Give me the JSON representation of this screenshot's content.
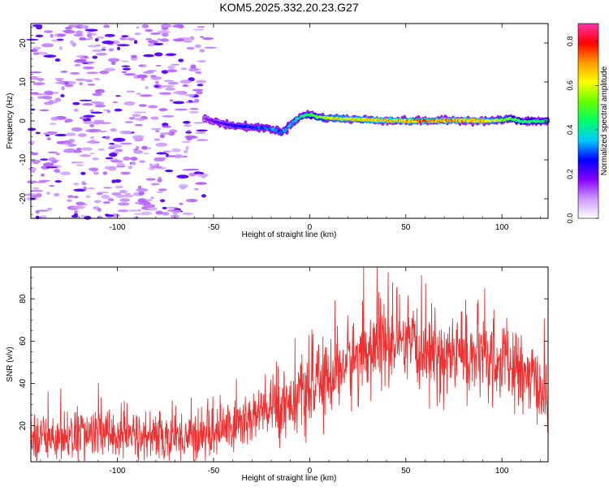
{
  "figure": {
    "title": "KOM5.2025.332.20.23.G27"
  },
  "chart_data": [
    {
      "type": "heatmap",
      "title": "KOM5.2025.332.20.23.G27",
      "xlabel": "Height of straight line (km)",
      "ylabel": "Frequency (Hz)",
      "xlim": [
        -145,
        124
      ],
      "ylim": [
        -25,
        25
      ],
      "xticks": [
        -100,
        -50,
        0,
        50,
        100
      ],
      "yticks": [
        -20,
        -10,
        0,
        10,
        20
      ],
      "colorbar": {
        "label": "Normalized spectral amplitude",
        "range": [
          0,
          0.88
        ],
        "ticks": [
          0.0,
          0.2,
          0.4,
          0.6,
          0.8
        ],
        "tick_labels": [
          "0.0",
          "0.2",
          "0.4",
          "0.6",
          "0.8"
        ],
        "colormap": [
          "#ffffff",
          "#cc99ff",
          "#8800ff",
          "#0000ff",
          "#00ccff",
          "#00ff66",
          "#66ff00",
          "#ffff00",
          "#ff9900",
          "#ff0000",
          "#ff33aa"
        ]
      },
      "noise_region_x": [
        -145,
        -55
      ],
      "noise_amplitude": 0.15,
      "trace": {
        "description_free": true,
        "x": [
          -55,
          -48,
          -40,
          -30,
          -25,
          -20,
          -17,
          -15,
          -13,
          -10,
          -7,
          -4,
          -1,
          1,
          4,
          8,
          15,
          25,
          35,
          50,
          60,
          75,
          90,
          100,
          105,
          110,
          124
        ],
        "freq_hz": [
          0.6,
          -0.4,
          -1.2,
          -1.6,
          -1.8,
          -2.0,
          -2.4,
          -3.0,
          -2.4,
          -1.0,
          0.4,
          1.2,
          1.6,
          1.6,
          1.0,
          0.8,
          0.6,
          0.4,
          0.2,
          0.0,
          0.0,
          0.2,
          0.0,
          0.2,
          0.6,
          -0.2,
          0.0
        ],
        "amplitude": [
          0.15,
          0.2,
          0.25,
          0.27,
          0.3,
          0.32,
          0.3,
          0.32,
          0.35,
          0.32,
          0.35,
          0.38,
          0.45,
          0.48,
          0.52,
          0.55,
          0.6,
          0.62,
          0.64,
          0.68,
          0.7,
          0.68,
          0.64,
          0.55,
          0.5,
          0.45,
          0.42
        ]
      }
    },
    {
      "type": "line",
      "xlabel": "Height of straight line (km)",
      "ylabel": "SNR (v/v)",
      "xlim": [
        -145,
        124
      ],
      "ylim": [
        3,
        95
      ],
      "xticks": [
        -100,
        -50,
        0,
        50,
        100
      ],
      "yticks": [
        20,
        40,
        60,
        80
      ],
      "series": [
        {
          "name": "SNR",
          "color": "#f03030",
          "x_envelope": [
            -145,
            -130,
            -120,
            -100,
            -90,
            -80,
            -70,
            -60,
            -50,
            -40,
            -30,
            -20,
            -10,
            0,
            10,
            20,
            30,
            40,
            50,
            60,
            70,
            80,
            90,
            100,
            110,
            120,
            124
          ],
          "mean": [
            14,
            15,
            16,
            16,
            15,
            14,
            15,
            15,
            17,
            20,
            24,
            28,
            32,
            36,
            43,
            50,
            55,
            58,
            57,
            55,
            53,
            54,
            52,
            50,
            45,
            38,
            34
          ],
          "spread": [
            6,
            7,
            7,
            7,
            7,
            6,
            7,
            7,
            7,
            8,
            8,
            9,
            9,
            10,
            10,
            11,
            11,
            11,
            11,
            11,
            11,
            11,
            11,
            11,
            10,
            9,
            9
          ],
          "peak": {
            "x": 35,
            "y": 95
          }
        }
      ]
    }
  ]
}
